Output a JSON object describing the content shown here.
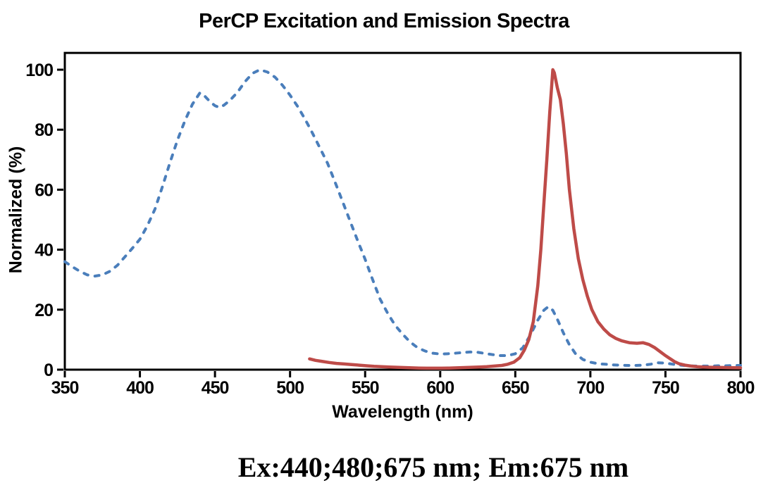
{
  "annotation": "Ex:440;480;675 nm; Em:675 nm",
  "chart_data": {
    "type": "line",
    "title": "PerCP Excitation and Emission Spectra",
    "xlabel": "Wavelength (nm)",
    "ylabel": "Normalized (%)",
    "xlim": [
      350,
      800
    ],
    "ylim": [
      0,
      105.6
    ],
    "x_ticks": [
      350,
      400,
      450,
      500,
      550,
      600,
      650,
      700,
      750,
      800
    ],
    "y_ticks": [
      0,
      20,
      40,
      60,
      80,
      100
    ],
    "grid": false,
    "legend": "none",
    "axis_color": "#000000",
    "series": [
      {
        "name": "Excitation",
        "line_style": "dashed",
        "color": "#4A7EBB",
        "points": [
          [
            350,
            36
          ],
          [
            355,
            34.3
          ],
          [
            360,
            32.8
          ],
          [
            365,
            31.6
          ],
          [
            370,
            31.2
          ],
          [
            375,
            31.6
          ],
          [
            380,
            32.8
          ],
          [
            385,
            34.8
          ],
          [
            390,
            37.6
          ],
          [
            395,
            40.5
          ],
          [
            400,
            43.5
          ],
          [
            405,
            48
          ],
          [
            410,
            53.5
          ],
          [
            415,
            61
          ],
          [
            420,
            69
          ],
          [
            425,
            76.5
          ],
          [
            430,
            83
          ],
          [
            435,
            88.5
          ],
          [
            440,
            92.3
          ],
          [
            443,
            91.3
          ],
          [
            447,
            89.2
          ],
          [
            450,
            88
          ],
          [
            453,
            87.4
          ],
          [
            456,
            88.2
          ],
          [
            460,
            89.8
          ],
          [
            465,
            92.5
          ],
          [
            470,
            96
          ],
          [
            475,
            98.8
          ],
          [
            480,
            100
          ],
          [
            485,
            99.2
          ],
          [
            490,
            97.5
          ],
          [
            495,
            94.8
          ],
          [
            500,
            91.5
          ],
          [
            505,
            87.8
          ],
          [
            510,
            83.5
          ],
          [
            515,
            78.8
          ],
          [
            520,
            73.8
          ],
          [
            525,
            68.8
          ],
          [
            530,
            62.5
          ],
          [
            535,
            56
          ],
          [
            540,
            49.5
          ],
          [
            545,
            43
          ],
          [
            550,
            36.8
          ],
          [
            555,
            30
          ],
          [
            560,
            23.5
          ],
          [
            565,
            18.8
          ],
          [
            570,
            14.8
          ],
          [
            575,
            11.8
          ],
          [
            580,
            9.2
          ],
          [
            585,
            7.3
          ],
          [
            590,
            6.2
          ],
          [
            595,
            5.5
          ],
          [
            600,
            5.2
          ],
          [
            605,
            5.3
          ],
          [
            610,
            5.5
          ],
          [
            615,
            5.7
          ],
          [
            620,
            5.9
          ],
          [
            625,
            5.8
          ],
          [
            630,
            5.4
          ],
          [
            635,
            5
          ],
          [
            640,
            4.7
          ],
          [
            645,
            4.7
          ],
          [
            650,
            5.3
          ],
          [
            655,
            7.3
          ],
          [
            660,
            11.5
          ],
          [
            665,
            16.5
          ],
          [
            669,
            19.8
          ],
          [
            672,
            21
          ],
          [
            675,
            19.8
          ],
          [
            678,
            16.8
          ],
          [
            682,
            12.3
          ],
          [
            686,
            8.3
          ],
          [
            690,
            5.4
          ],
          [
            695,
            3.4
          ],
          [
            700,
            2.5
          ],
          [
            705,
            2
          ],
          [
            710,
            1.8
          ],
          [
            715,
            1.6
          ],
          [
            720,
            1.5
          ],
          [
            725,
            1.4
          ],
          [
            730,
            1.4
          ],
          [
            735,
            1.5
          ],
          [
            740,
            1.8
          ],
          [
            745,
            2.3
          ],
          [
            750,
            2.2
          ],
          [
            755,
            1.8
          ],
          [
            760,
            1.5
          ],
          [
            765,
            1.3
          ],
          [
            770,
            1.2
          ],
          [
            775,
            1.2
          ],
          [
            780,
            1.2
          ],
          [
            785,
            1.3
          ],
          [
            790,
            1.3
          ],
          [
            795,
            1.4
          ],
          [
            800,
            1.4
          ]
        ]
      },
      {
        "name": "Emission",
        "line_style": "solid",
        "color": "#BE4B48",
        "points": [
          [
            513,
            3.6
          ],
          [
            517,
            3.1
          ],
          [
            521,
            2.8
          ],
          [
            526,
            2.4
          ],
          [
            531,
            2.1
          ],
          [
            536,
            1.9
          ],
          [
            541,
            1.7
          ],
          [
            546,
            1.5
          ],
          [
            551,
            1.3
          ],
          [
            556,
            1.1
          ],
          [
            561,
            1
          ],
          [
            566,
            0.9
          ],
          [
            571,
            0.8
          ],
          [
            576,
            0.7
          ],
          [
            581,
            0.6
          ],
          [
            586,
            0.55
          ],
          [
            591,
            0.5
          ],
          [
            596,
            0.5
          ],
          [
            601,
            0.5
          ],
          [
            606,
            0.55
          ],
          [
            611,
            0.6
          ],
          [
            616,
            0.7
          ],
          [
            621,
            0.8
          ],
          [
            626,
            0.9
          ],
          [
            631,
            1
          ],
          [
            636,
            1.2
          ],
          [
            641,
            1.4
          ],
          [
            645,
            1.8
          ],
          [
            649,
            2.5
          ],
          [
            653,
            4
          ],
          [
            656,
            6.5
          ],
          [
            659,
            10
          ],
          [
            662,
            16
          ],
          [
            665,
            28
          ],
          [
            667,
            40
          ],
          [
            669,
            55
          ],
          [
            671,
            70
          ],
          [
            673,
            86
          ],
          [
            674,
            93
          ],
          [
            675,
            100
          ],
          [
            676,
            99
          ],
          [
            678,
            94
          ],
          [
            680,
            90
          ],
          [
            682,
            82
          ],
          [
            684,
            72
          ],
          [
            686,
            60
          ],
          [
            689,
            47
          ],
          [
            692,
            37
          ],
          [
            695,
            30
          ],
          [
            698,
            24.5
          ],
          [
            701,
            20
          ],
          [
            705,
            16
          ],
          [
            709,
            13.5
          ],
          [
            713,
            11.6
          ],
          [
            717,
            10.4
          ],
          [
            721,
            9.6
          ],
          [
            726,
            9
          ],
          [
            731,
            8.8
          ],
          [
            735,
            9
          ],
          [
            739,
            8.4
          ],
          [
            743,
            7.3
          ],
          [
            747,
            5.8
          ],
          [
            750,
            4.7
          ],
          [
            753,
            3.7
          ],
          [
            756,
            2.7
          ],
          [
            759,
            2
          ],
          [
            763,
            1.5
          ],
          [
            767,
            1.2
          ],
          [
            771,
            1
          ],
          [
            775,
            0.9
          ],
          [
            780,
            0.8
          ],
          [
            785,
            0.75
          ],
          [
            790,
            0.7
          ],
          [
            795,
            0.65
          ],
          [
            800,
            0.6
          ]
        ]
      }
    ]
  }
}
